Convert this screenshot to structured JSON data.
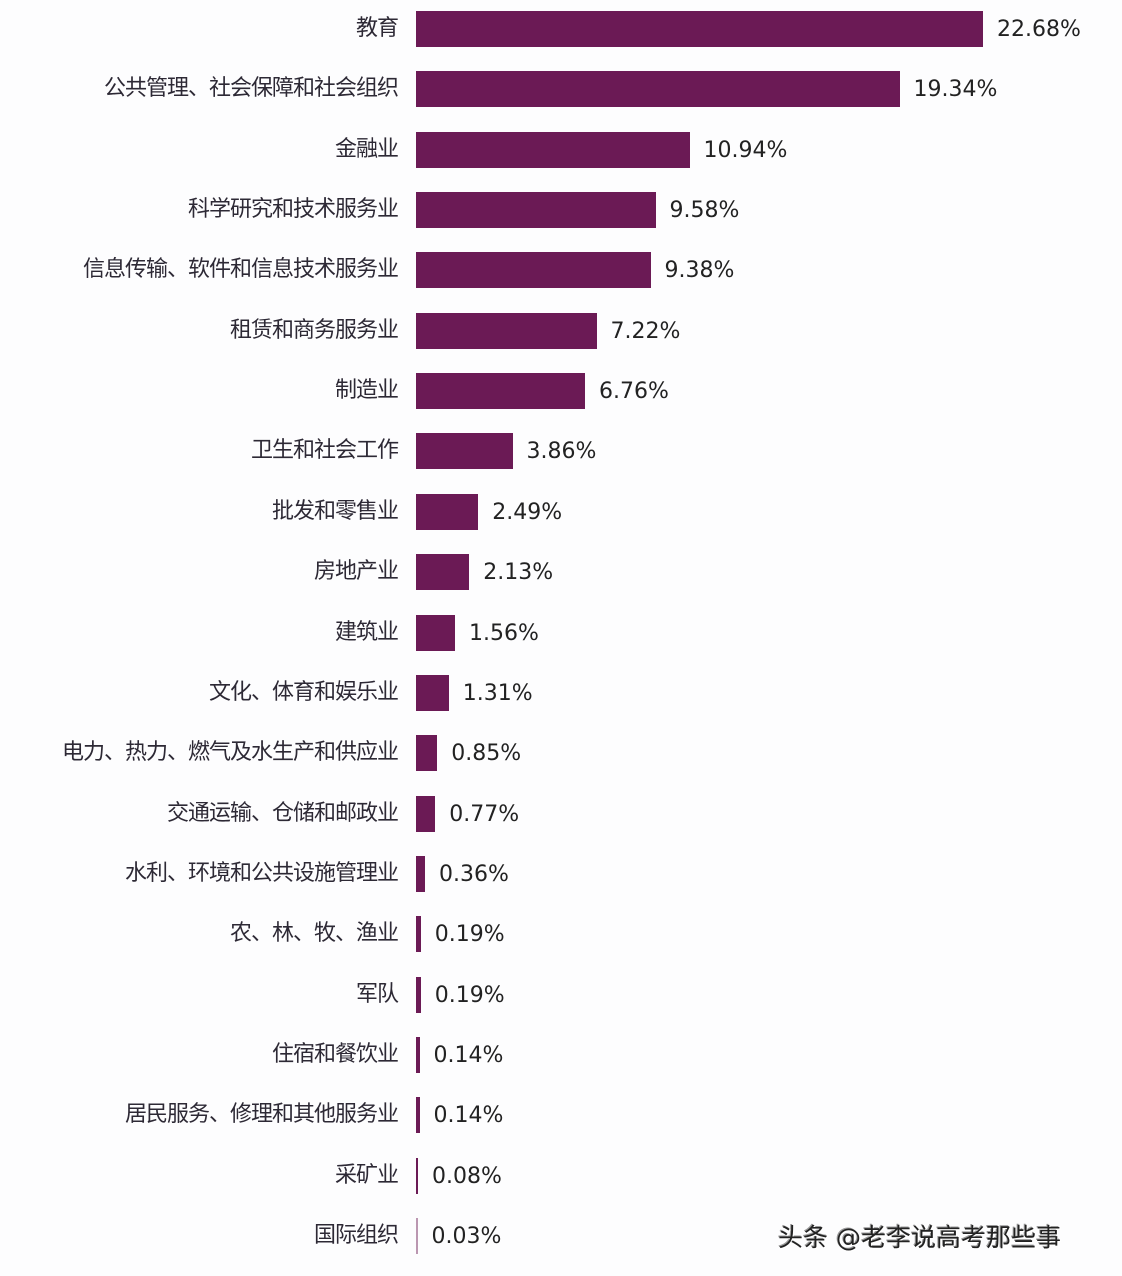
{
  "chart_data": {
    "type": "bar",
    "orientation": "horizontal",
    "title": "",
    "xlabel": "",
    "ylabel": "",
    "grid": false,
    "legend": null,
    "bar_color": "#6b1a55",
    "categories": [
      "教育",
      "公共管理、社会保障和社会组织",
      "金融业",
      "科学研究和技术服务业",
      "信息传输、软件和信息技术服务业",
      "租赁和商务服务业",
      "制造业",
      "卫生和社会工作",
      "批发和零售业",
      "房地产业",
      "建筑业",
      "文化、体育和娱乐业",
      "电力、热力、燃气及水生产和供应业",
      "交通运输、仓储和邮政业",
      "水利、环境和公共设施管理业",
      "农、林、牧、渔业",
      "军队",
      "住宿和餐饮业",
      "居民服务、修理和其他服务业",
      "采矿业",
      "国际组织"
    ],
    "values": [
      22.68,
      19.34,
      10.94,
      9.58,
      9.38,
      7.22,
      6.76,
      3.86,
      2.49,
      2.13,
      1.56,
      1.31,
      0.85,
      0.77,
      0.36,
      0.19,
      0.19,
      0.14,
      0.14,
      0.08,
      0.03
    ],
    "value_labels": [
      "22.68%",
      "19.34%",
      "10.94%",
      "9.58%",
      "9.38%",
      "7.22%",
      "6.76%",
      "3.86%",
      "2.49%",
      "2.13%",
      "1.56%",
      "1.31%",
      "0.85%",
      "0.77%",
      "0.36%",
      "0.19%",
      "0.19%",
      "0.14%",
      "0.14%",
      "0.08%",
      "0.03%"
    ],
    "unit": "%",
    "xlim": [
      0,
      25
    ]
  },
  "watermark": "头条 @老李说高考那些事"
}
